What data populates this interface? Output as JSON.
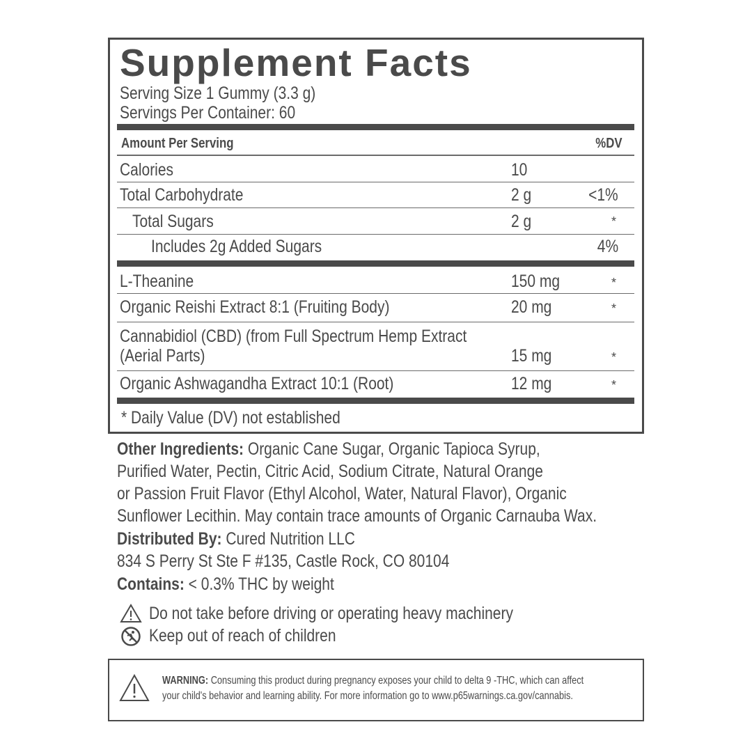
{
  "title": "Supplement Facts",
  "serving_size": "Serving Size 1 Gummy (3.3 g)",
  "servings_per_container": "Servings Per Container: 60",
  "header": {
    "amount": "Amount Per Serving",
    "dv": "%DV"
  },
  "rows": [
    {
      "name": "Calories",
      "amount": "10",
      "dv": ""
    },
    {
      "name": "Total Carbohydrate",
      "amount": "2 g",
      "dv": "<1%"
    },
    {
      "name": "Total Sugars",
      "amount": "2 g",
      "dv": "*"
    },
    {
      "name": "Includes 2g Added Sugars",
      "amount": "",
      "dv": "4%"
    },
    {
      "name": "L-Theanine",
      "amount": "150 mg",
      "dv": "*"
    },
    {
      "name": "Organic Reishi Extract 8:1 (Fruiting Body)",
      "amount": "20 mg",
      "dv": "*"
    },
    {
      "name": "Cannabidiol (CBD) (from Full Spectrum Hemp Extract",
      "name2": "(Aerial Parts)",
      "amount": "15 mg",
      "dv": "*"
    },
    {
      "name": "Organic Ashwagandha Extract 10:1 (Root)",
      "amount": "12 mg",
      "dv": "*"
    }
  ],
  "footnote": "* Daily Value (DV) not established",
  "other_ingredients": {
    "label": "Other Ingredients:",
    "lines": [
      "Organic Cane Sugar, Organic Tapioca Syrup,",
      "Purified Water, Pectin, Citric Acid, Sodium Citrate, Natural Orange",
      "or Passion Fruit Flavor (Ethyl Alcohol, Water, Natural Flavor), Organic",
      "Sunflower Lecithin. May contain trace amounts of Organic Carnauba Wax."
    ]
  },
  "distributed": {
    "label": "Distributed By:",
    "name": "Cured Nutrition LLC",
    "address": "834 S Perry St Ste F #135, Castle Rock, CO 80104"
  },
  "contains": {
    "label": "Contains:",
    "text": "< 0.3% THC by weight"
  },
  "cautions": [
    {
      "icon": "warning-triangle-icon",
      "text": "Do not take before driving or operating heavy machinery"
    },
    {
      "icon": "no-children-icon",
      "text": "Keep out of reach of children"
    }
  ],
  "warning": {
    "label": "WARNING:",
    "line1": "Consuming this product during pregnancy exposes your child to delta 9 -THC, which can affect",
    "line2": "your child's behavior and learning ability. For more information go to www.p65warnings.ca.gov/cannabis."
  }
}
